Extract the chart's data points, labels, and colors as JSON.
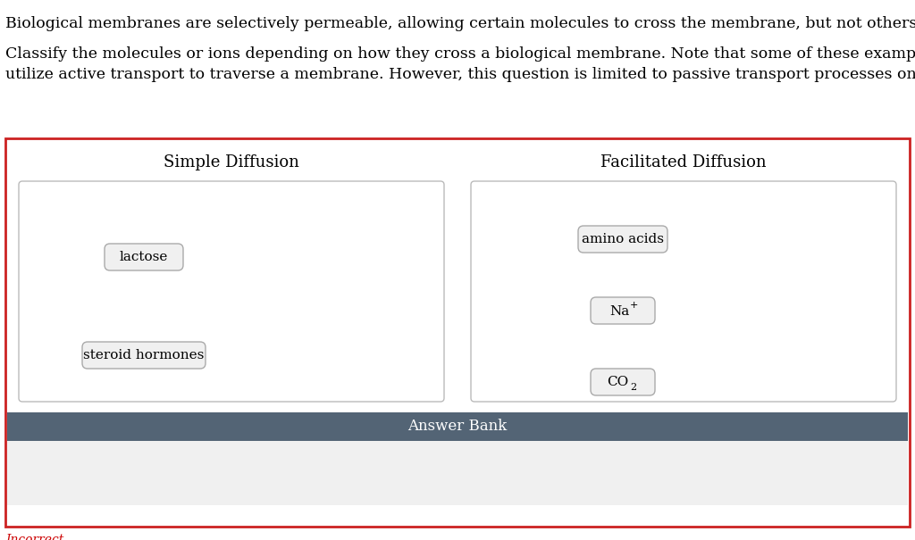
{
  "title_text1": "Biological membranes are selectively permeable, allowing certain molecules to cross the membrane, but not others.",
  "title_text2": "Classify the molecules or ions depending on how they cross a biological membrane. Note that some of these examples may also\nutilize active transport to traverse a membrane. However, this question is limited to passive transport processes only.",
  "col1_header": "Simple Diffusion",
  "col2_header": "Facilitated Diffusion",
  "col1_items": [
    "lactose",
    "steroid hormones"
  ],
  "col2_item1": "amino acids",
  "answer_bank_label": "Answer Bank",
  "outer_border_color": "#cc2222",
  "inner_box_border_color": "#bbbbbb",
  "answer_bank_bg": "#536475",
  "answer_bank_text_color": "#ffffff",
  "answer_bank_bottom_bg": "#f0f0f0",
  "item_box_border": "#aaaaaa",
  "item_box_bg": "#f0f0f0",
  "text_color": "#000000",
  "incorrect_color": "#cc0000",
  "background_color": "#ffffff",
  "font_size_body": 12.5,
  "font_size_header": 13,
  "font_size_item": 11,
  "font_size_answer_bank": 12
}
